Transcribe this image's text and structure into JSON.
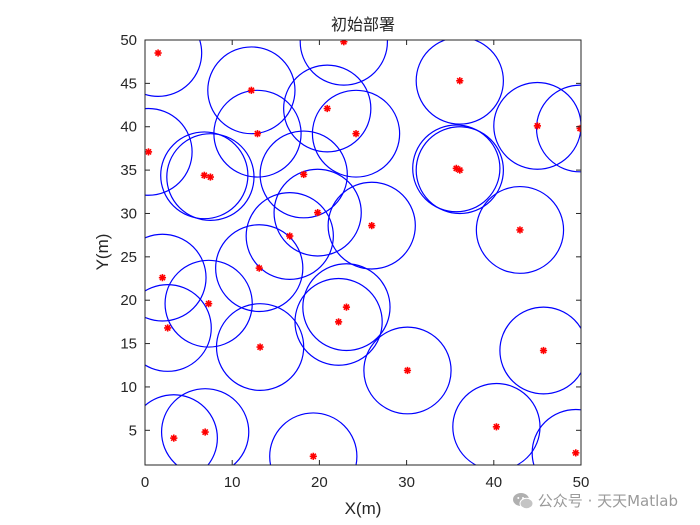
{
  "chart_data": {
    "type": "scatter",
    "title": "初始部署",
    "xlabel": "X(m)",
    "ylabel": "Y(m)",
    "xlim": [
      0,
      50
    ],
    "ylim": [
      1,
      50
    ],
    "xticks": [
      0,
      10,
      20,
      30,
      40,
      50
    ],
    "yticks": [
      5,
      10,
      15,
      20,
      25,
      30,
      35,
      40,
      45,
      50
    ],
    "coverage_radius": 5,
    "nodes_colour": "#ff0000",
    "circle_colour": "#0000ff",
    "nodes": [
      [
        1.5,
        48.5
      ],
      [
        22.8,
        49.8
      ],
      [
        12.2,
        44.2
      ],
      [
        20.9,
        42.1
      ],
      [
        12.9,
        39.2
      ],
      [
        24.2,
        39.2
      ],
      [
        36.1,
        45.3
      ],
      [
        45.0,
        40.1
      ],
      [
        49.9,
        39.8
      ],
      [
        0.4,
        37.1
      ],
      [
        6.8,
        34.4
      ],
      [
        7.5,
        34.2
      ],
      [
        18.2,
        34.5
      ],
      [
        35.7,
        35.2
      ],
      [
        36.1,
        35.0
      ],
      [
        19.8,
        30.1
      ],
      [
        26.0,
        28.6
      ],
      [
        16.6,
        27.4
      ],
      [
        43.0,
        28.1
      ],
      [
        2.0,
        22.6
      ],
      [
        13.1,
        23.7
      ],
      [
        7.3,
        19.6
      ],
      [
        23.1,
        19.2
      ],
      [
        2.6,
        16.8
      ],
      [
        22.2,
        17.5
      ],
      [
        13.2,
        14.6
      ],
      [
        45.7,
        14.2
      ],
      [
        30.1,
        11.9
      ],
      [
        40.3,
        5.4
      ],
      [
        6.9,
        4.8
      ],
      [
        3.3,
        4.1
      ],
      [
        19.3,
        2.0
      ],
      [
        49.4,
        2.4
      ]
    ]
  },
  "watermark": {
    "text": "公众号 · 天天Matlab"
  }
}
